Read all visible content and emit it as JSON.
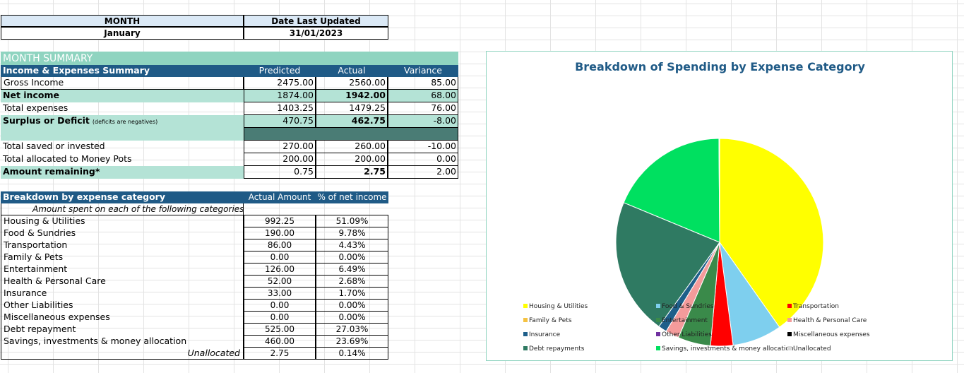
{
  "header": {
    "month_label": "MONTH",
    "month_value": "January",
    "updated_label": "Date Last Updated",
    "updated_value": "31/01/2023"
  },
  "summary": {
    "title": "MONTH SUMMARY",
    "table_title": "Income & Expenses Summary",
    "col_predicted": "Predicted",
    "col_actual": "Actual",
    "col_variance": "Variance",
    "rows": [
      {
        "label": "Gross Income",
        "predicted": "2475.00",
        "actual": "2560.00",
        "variance": "85.00"
      },
      {
        "label": "Net income",
        "predicted": "1874.00",
        "actual": "1942.00",
        "variance": "68.00"
      },
      {
        "label": "Total expenses",
        "predicted": "1403.25",
        "actual": "1479.25",
        "variance": "76.00"
      },
      {
        "label": "Surplus or Deficit",
        "note": "(deficits are negatives)",
        "predicted": "470.75",
        "actual": "462.75",
        "variance": "-8.00"
      }
    ],
    "rows2": [
      {
        "label": "Total saved or invested",
        "predicted": "270.00",
        "actual": "260.00",
        "variance": "-10.00"
      },
      {
        "label": "Total allocated to Money Pots",
        "predicted": "200.00",
        "actual": "200.00",
        "variance": "0.00"
      },
      {
        "label": "Amount remaining*",
        "predicted": "0.75",
        "actual": "2.75",
        "variance": "2.00"
      }
    ]
  },
  "breakdown": {
    "title": "Breakdown by expense category",
    "subtitle": "Amount spent on each of the following categories",
    "col_amount": "Actual Amount",
    "col_pct": "% of net income",
    "rows": [
      {
        "label": "Housing & Utilities",
        "amount": "992.25",
        "pct": "51.09%"
      },
      {
        "label": "Food & Sundries",
        "amount": "190.00",
        "pct": "9.78%"
      },
      {
        "label": "Transportation",
        "amount": "86.00",
        "pct": "4.43%"
      },
      {
        "label": "Family & Pets",
        "amount": "0.00",
        "pct": "0.00%"
      },
      {
        "label": "Entertainment",
        "amount": "126.00",
        "pct": "6.49%"
      },
      {
        "label": "Health & Personal Care",
        "amount": "52.00",
        "pct": "2.68%"
      },
      {
        "label": "Insurance",
        "amount": "33.00",
        "pct": "1.70%"
      },
      {
        "label": "Other Liabilities",
        "amount": "0.00",
        "pct": "0.00%"
      },
      {
        "label": "Miscellaneous expenses",
        "amount": "0.00",
        "pct": "0.00%"
      },
      {
        "label": "Debt repayment",
        "amount": "525.00",
        "pct": "27.03%"
      },
      {
        "label": "Savings, investments & money allocation",
        "amount": "460.00",
        "pct": "23.69%"
      },
      {
        "label": "Unallocated",
        "amount": "2.75",
        "pct": "0.14%"
      }
    ]
  },
  "chart_data": {
    "type": "pie",
    "title": "Breakdown of Spending by Expense Category",
    "slices": [
      {
        "name": "Housing & Utilities",
        "value": 992.25,
        "color": "#ffff00"
      },
      {
        "name": "Food & Sundries",
        "value": 190.0,
        "color": "#7ecfee"
      },
      {
        "name": "Transportation",
        "value": 86.0,
        "color": "#ff0000"
      },
      {
        "name": "Family & Pets",
        "value": 0.0,
        "color": "#f5c242"
      },
      {
        "name": "Entertainment",
        "value": 126.0,
        "color": "#3a8a4a"
      },
      {
        "name": "Health & Personal Care",
        "value": 52.0,
        "color": "#f49b9b"
      },
      {
        "name": "Insurance",
        "value": 33.0,
        "color": "#1e5f8a"
      },
      {
        "name": "Other Liabilities",
        "value": 0.0,
        "color": "#7030a0"
      },
      {
        "name": "Miscellaneous expenses",
        "value": 0.0,
        "color": "#000000"
      },
      {
        "name": "Debt repayments",
        "value": 525.0,
        "color": "#2f7a62"
      },
      {
        "name": "Savings, investments & money allocation",
        "value": 460.0,
        "color": "#00e060"
      },
      {
        "name": "Unallocated",
        "value": 2.75,
        "color": "#d9d9d9"
      }
    ],
    "legend_position": "bottom"
  }
}
